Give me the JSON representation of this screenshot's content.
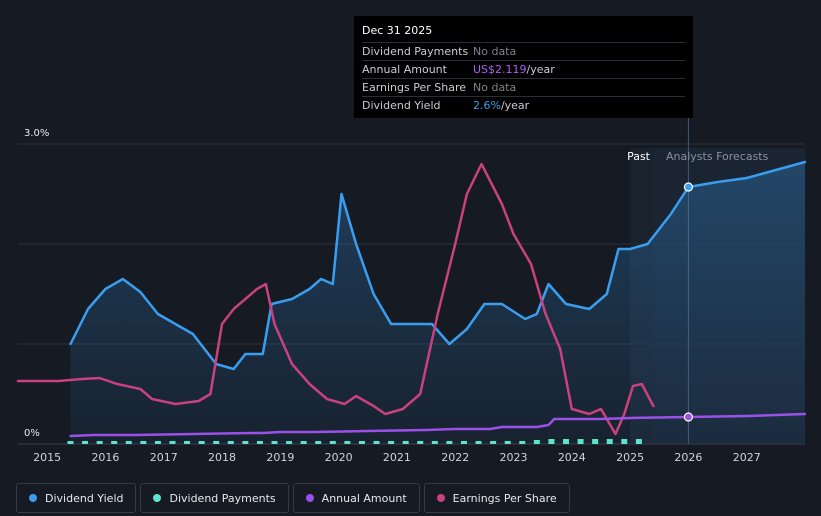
{
  "tooltip": {
    "date": "Dec 31 2025",
    "rows": [
      {
        "label": "Dividend Payments",
        "value": "No data",
        "color": "#7d828c"
      },
      {
        "label": "Annual Amount",
        "value": "US$2.119",
        "suffix": "/year",
        "color": "#b05cf2"
      },
      {
        "label": "Earnings Per Share",
        "value": "No data",
        "color": "#7d828c"
      },
      {
        "label": "Dividend Yield",
        "value": "2.6%",
        "suffix": "/year",
        "color": "#3a9ef0"
      }
    ]
  },
  "regions": {
    "past": "Past",
    "forecast": "Analysts Forecasts"
  },
  "legend": [
    {
      "label": "Dividend Yield",
      "color": "#3a9ef0"
    },
    {
      "label": "Dividend Payments",
      "color": "#5fe3cf"
    },
    {
      "label": "Annual Amount",
      "color": "#9b51e8"
    },
    {
      "label": "Earnings Per Share",
      "color": "#c9417e"
    }
  ],
  "chart_data": {
    "type": "line",
    "ylabels": {
      "top": "3.0%",
      "bottom": "0%"
    },
    "ylim": [
      0,
      3.0
    ],
    "xlim": [
      2014.5,
      2028.0
    ],
    "x_ticks": [
      "2015",
      "2016",
      "2017",
      "2018",
      "2019",
      "2020",
      "2021",
      "2022",
      "2023",
      "2024",
      "2025",
      "2026",
      "2027"
    ],
    "past_end": 2025.0,
    "forecast_start": 2025.4,
    "tooltip_x": 2026.0,
    "series": [
      {
        "name": "Dividend Yield",
        "color": "#3a9ef0",
        "area": true,
        "points": [
          [
            2015.4,
            1.0
          ],
          [
            2015.7,
            1.35
          ],
          [
            2016.0,
            1.55
          ],
          [
            2016.3,
            1.65
          ],
          [
            2016.6,
            1.52
          ],
          [
            2016.9,
            1.3
          ],
          [
            2017.2,
            1.2
          ],
          [
            2017.5,
            1.1
          ],
          [
            2017.7,
            0.95
          ],
          [
            2017.9,
            0.8
          ],
          [
            2018.2,
            0.75
          ],
          [
            2018.4,
            0.9
          ],
          [
            2018.7,
            0.9
          ],
          [
            2018.85,
            1.4
          ],
          [
            2019.2,
            1.45
          ],
          [
            2019.5,
            1.55
          ],
          [
            2019.7,
            1.65
          ],
          [
            2019.9,
            1.6
          ],
          [
            2020.05,
            2.5
          ],
          [
            2020.3,
            2.0
          ],
          [
            2020.6,
            1.5
          ],
          [
            2020.9,
            1.2
          ],
          [
            2021.3,
            1.2
          ],
          [
            2021.6,
            1.2
          ],
          [
            2021.9,
            1.0
          ],
          [
            2022.2,
            1.15
          ],
          [
            2022.5,
            1.4
          ],
          [
            2022.8,
            1.4
          ],
          [
            2023.2,
            1.25
          ],
          [
            2023.4,
            1.3
          ],
          [
            2023.6,
            1.6
          ],
          [
            2023.9,
            1.4
          ],
          [
            2024.3,
            1.35
          ],
          [
            2024.6,
            1.5
          ],
          [
            2024.8,
            1.95
          ],
          [
            2025.0,
            1.95
          ],
          [
            2025.3,
            2.0
          ],
          [
            2025.7,
            2.3
          ],
          [
            2026.0,
            2.57
          ],
          [
            2026.5,
            2.62
          ],
          [
            2027.0,
            2.66
          ],
          [
            2027.5,
            2.74
          ],
          [
            2028.0,
            2.82
          ]
        ]
      },
      {
        "name": "Earnings Per Share",
        "color": "#c9417e",
        "area": false,
        "points": [
          [
            2014.5,
            0.63
          ],
          [
            2014.9,
            0.63
          ],
          [
            2015.2,
            0.63
          ],
          [
            2015.6,
            0.65
          ],
          [
            2015.9,
            0.66
          ],
          [
            2016.2,
            0.6
          ],
          [
            2016.6,
            0.55
          ],
          [
            2016.8,
            0.45
          ],
          [
            2017.2,
            0.4
          ],
          [
            2017.6,
            0.43
          ],
          [
            2017.8,
            0.5
          ],
          [
            2018.0,
            1.2
          ],
          [
            2018.2,
            1.35
          ],
          [
            2018.6,
            1.55
          ],
          [
            2018.75,
            1.6
          ],
          [
            2018.9,
            1.2
          ],
          [
            2019.2,
            0.8
          ],
          [
            2019.5,
            0.6
          ],
          [
            2019.8,
            0.45
          ],
          [
            2020.1,
            0.4
          ],
          [
            2020.3,
            0.48
          ],
          [
            2020.6,
            0.38
          ],
          [
            2020.8,
            0.3
          ],
          [
            2021.1,
            0.35
          ],
          [
            2021.4,
            0.5
          ],
          [
            2021.7,
            1.3
          ],
          [
            2022.0,
            2.0
          ],
          [
            2022.2,
            2.5
          ],
          [
            2022.45,
            2.8
          ],
          [
            2022.8,
            2.4
          ],
          [
            2023.0,
            2.1
          ],
          [
            2023.3,
            1.8
          ],
          [
            2023.55,
            1.3
          ],
          [
            2023.8,
            0.95
          ],
          [
            2024.0,
            0.35
          ],
          [
            2024.3,
            0.3
          ],
          [
            2024.5,
            0.35
          ],
          [
            2024.75,
            0.1
          ],
          [
            2024.9,
            0.3
          ],
          [
            2025.05,
            0.58
          ],
          [
            2025.2,
            0.6
          ],
          [
            2025.4,
            0.38
          ]
        ]
      },
      {
        "name": "Annual Amount",
        "color": "#9b51e8",
        "area": false,
        "points": [
          [
            2015.4,
            0.08
          ],
          [
            2015.8,
            0.09
          ],
          [
            2016.5,
            0.09
          ],
          [
            2017.5,
            0.1
          ],
          [
            2018.5,
            0.11
          ],
          [
            2018.7,
            0.11
          ],
          [
            2019.0,
            0.12
          ],
          [
            2019.6,
            0.12
          ],
          [
            2020.5,
            0.13
          ],
          [
            2021.5,
            0.14
          ],
          [
            2022.0,
            0.15
          ],
          [
            2022.6,
            0.15
          ],
          [
            2022.8,
            0.17
          ],
          [
            2023.4,
            0.17
          ],
          [
            2023.6,
            0.19
          ],
          [
            2023.7,
            0.25
          ],
          [
            2024.5,
            0.25
          ],
          [
            2025.0,
            0.26
          ],
          [
            2026.0,
            0.27
          ],
          [
            2027.0,
            0.28
          ],
          [
            2028.0,
            0.3
          ]
        ]
      }
    ],
    "payments": {
      "name": "Dividend Payments",
      "color": "#5fe3cf",
      "x": [
        2015.4,
        2015.65,
        2015.9,
        2016.15,
        2016.4,
        2016.65,
        2016.9,
        2017.15,
        2017.4,
        2017.65,
        2017.9,
        2018.15,
        2018.4,
        2018.65,
        2018.9,
        2019.15,
        2019.4,
        2019.65,
        2019.9,
        2020.15,
        2020.4,
        2020.65,
        2020.9,
        2021.15,
        2021.4,
        2021.65,
        2021.9,
        2022.15,
        2022.4,
        2022.65,
        2022.9,
        2023.15,
        2023.4,
        2023.65,
        2023.9,
        2024.15,
        2024.4,
        2024.65,
        2024.9,
        2025.15
      ],
      "values": [
        0.01,
        0.01,
        0.01,
        0.01,
        0.01,
        0.01,
        0.01,
        0.01,
        0.01,
        0.01,
        0.01,
        0.02,
        0.02,
        0.02,
        0.02,
        0.02,
        0.02,
        0.02,
        0.02,
        0.02,
        0.02,
        0.02,
        0.02,
        0.02,
        0.02,
        0.02,
        0.02,
        0.02,
        0.03,
        0.03,
        0.03,
        0.03,
        0.04,
        0.05,
        0.05,
        0.05,
        0.05,
        0.05,
        0.05,
        0.05
      ]
    },
    "markers": [
      {
        "series": "Dividend Yield",
        "x": 2026.0,
        "y": 2.57
      },
      {
        "series": "Annual Amount",
        "x": 2026.0,
        "y": 0.27
      }
    ]
  }
}
